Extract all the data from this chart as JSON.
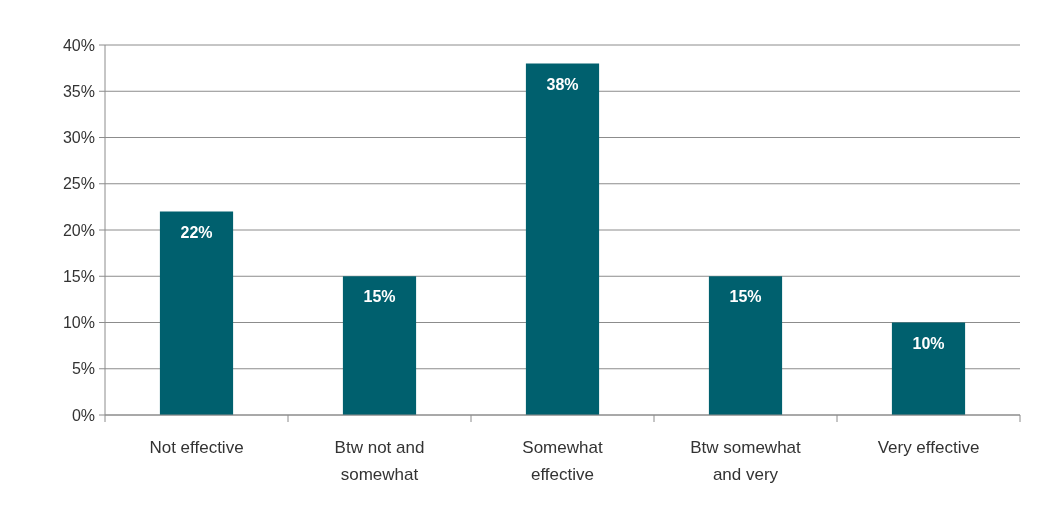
{
  "chart_data": {
    "type": "bar",
    "categories": [
      "Not effective",
      "Btw not and somewhat",
      "Somewhat effective",
      "Btw somewhat and very",
      "Very effective"
    ],
    "values": [
      22,
      15,
      38,
      15,
      10
    ],
    "color": "#00606e",
    "ylim": [
      0,
      40
    ],
    "yticks": [
      {
        "value": 0,
        "label": "0%"
      },
      {
        "value": 5,
        "label": "5%"
      },
      {
        "value": 10,
        "label": "10%"
      },
      {
        "value": 15,
        "label": "15%"
      },
      {
        "value": 20,
        "label": "20%"
      },
      {
        "value": 25,
        "label": "25%"
      },
      {
        "value": 30,
        "label": "30%"
      },
      {
        "value": 35,
        "label": "35%"
      },
      {
        "value": 40,
        "label": "40%"
      }
    ],
    "grid": "y",
    "value_labels": [
      "22%",
      "15%",
      "38%",
      "15%",
      "10%"
    ]
  }
}
